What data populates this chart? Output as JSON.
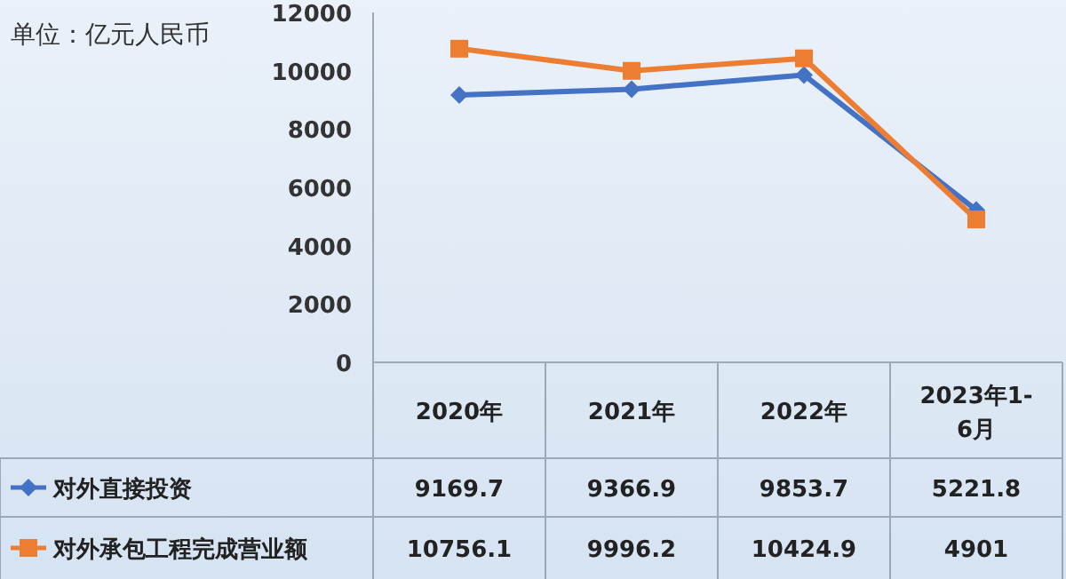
{
  "chart_data": {
    "type": "line",
    "categories": [
      "2020年",
      "2021年",
      "2022年",
      "2023年1-6月"
    ],
    "series": [
      {
        "name": "对外直接投资",
        "color": "#4472c4",
        "marker": "diamond",
        "values": [
          9169.7,
          9366.9,
          9853.7,
          5221.8
        ]
      },
      {
        "name": "对外承包工程完成营业额",
        "color": "#ed7d31",
        "marker": "square",
        "values": [
          10756.1,
          9996.2,
          10424.9,
          4901
        ]
      }
    ],
    "ylim": [
      0,
      12000
    ],
    "yticks": [
      0,
      2000,
      4000,
      6000,
      8000,
      10000,
      12000
    ],
    "grid": false,
    "legend": "bottom",
    "data_labels": true,
    "line_style": "solid",
    "annotations": [
      "单位：亿元人民币"
    ]
  }
}
